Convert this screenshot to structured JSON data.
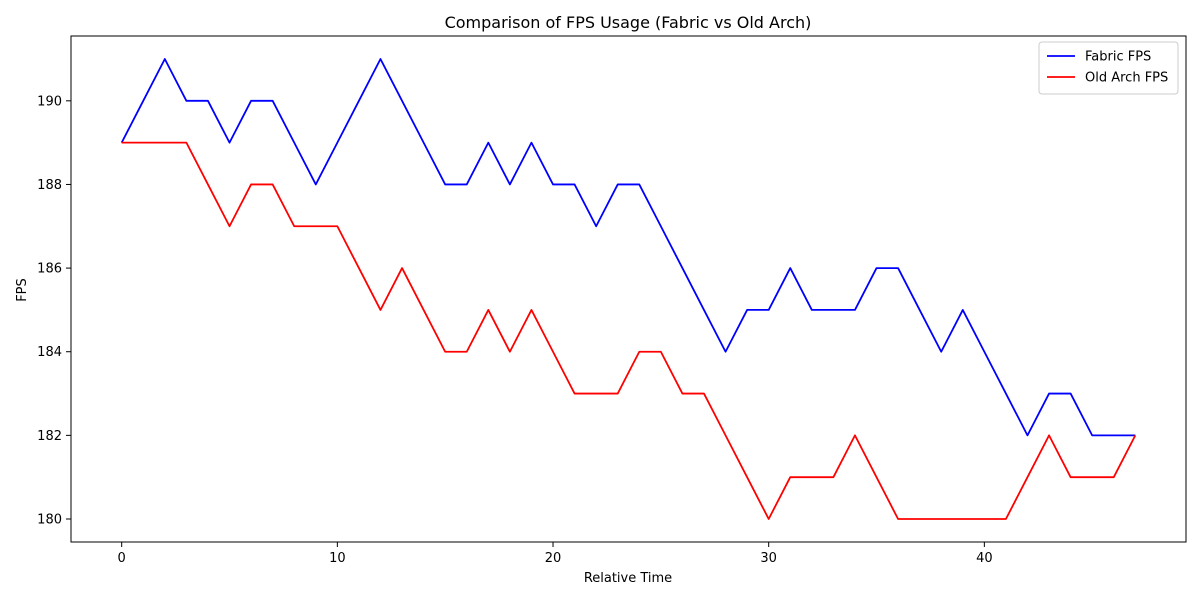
{
  "chart_data": {
    "type": "line",
    "title": "Comparison of FPS Usage (Fabric vs Old Arch)",
    "xlabel": "Relative Time",
    "ylabel": "FPS",
    "xlim": [
      -2.35,
      49.35
    ],
    "ylim": [
      179.45,
      191.55
    ],
    "xticks": [
      0,
      10,
      20,
      30,
      40
    ],
    "yticks": [
      180,
      182,
      184,
      186,
      188,
      190
    ],
    "grid": false,
    "legend": "top-right",
    "x": [
      0,
      1,
      2,
      3,
      4,
      5,
      6,
      7,
      8,
      9,
      10,
      11,
      12,
      13,
      14,
      15,
      16,
      17,
      18,
      19,
      20,
      21,
      22,
      23,
      24,
      25,
      26,
      27,
      28,
      29,
      30,
      31,
      32,
      33,
      34,
      35,
      36,
      37,
      38,
      39,
      40,
      41,
      42,
      43,
      44,
      45,
      46,
      47
    ],
    "series": [
      {
        "name": "Fabric FPS",
        "color": "#0000ff",
        "values": [
          189,
          190,
          191,
          190,
          190,
          189,
          190,
          190,
          189,
          188,
          189,
          190,
          191,
          190,
          189,
          188,
          188,
          189,
          188,
          189,
          188,
          188,
          187,
          188,
          188,
          187,
          186,
          185,
          184,
          185,
          185,
          186,
          185,
          185,
          185,
          186,
          186,
          185,
          184,
          185,
          184,
          183,
          182,
          183,
          183,
          182,
          182,
          182
        ]
      },
      {
        "name": "Old Arch FPS",
        "color": "#ff0000",
        "values": [
          189,
          189,
          189,
          189,
          188,
          187,
          188,
          188,
          187,
          187,
          187,
          186,
          185,
          186,
          185,
          184,
          184,
          185,
          184,
          185,
          184,
          183,
          183,
          183,
          184,
          184,
          183,
          183,
          182,
          181,
          180,
          181,
          181,
          181,
          182,
          181,
          180,
          180,
          180,
          180,
          180,
          180,
          181,
          182,
          181,
          181,
          181,
          182
        ]
      }
    ]
  }
}
